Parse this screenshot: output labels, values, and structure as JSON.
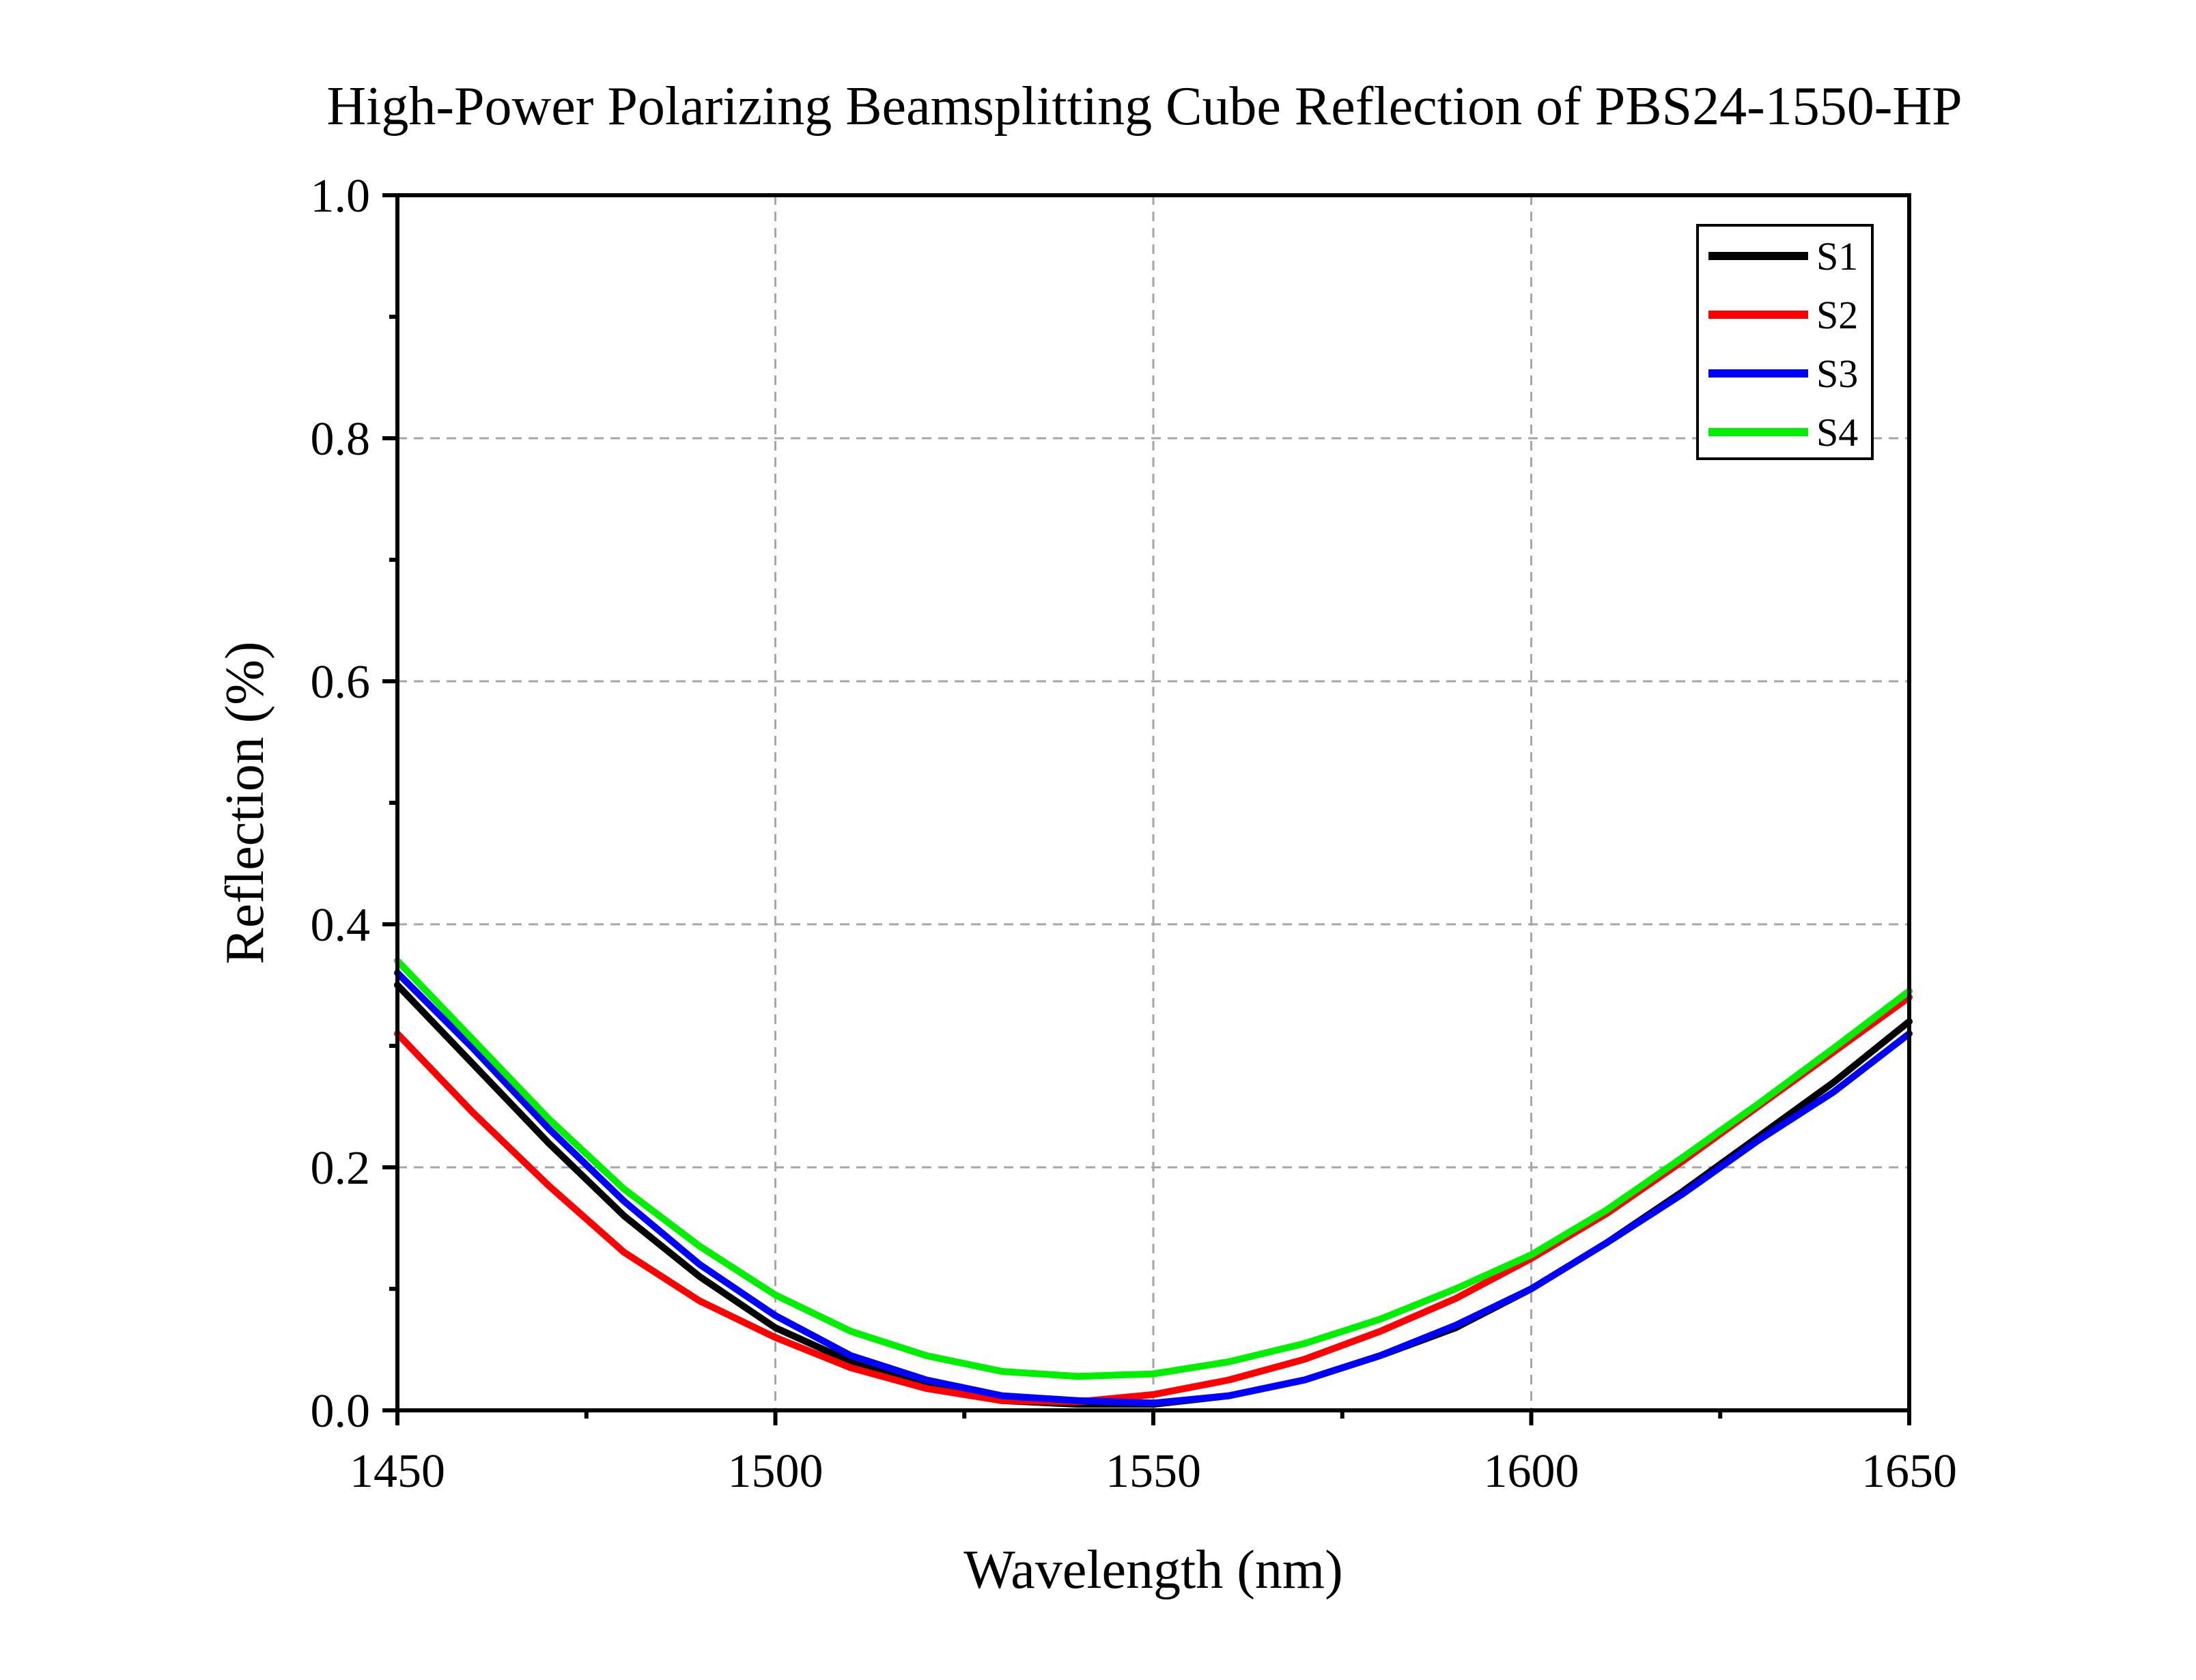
{
  "chart_data": {
    "type": "line",
    "title": "High-Power Polarizing Beamsplitting Cube Reflection of PBS24-1550-HP",
    "xlabel": "Wavelength (nm)",
    "ylabel": "Reflection (%)",
    "xlim": [
      1450,
      1650
    ],
    "ylim": [
      0,
      1.0
    ],
    "xticks": [
      1450,
      1500,
      1550,
      1600,
      1650
    ],
    "xtick_labels": [
      "1450",
      "1500",
      "1550",
      "1600",
      "1650"
    ],
    "yticks": [
      0,
      0.2,
      0.4,
      0.6,
      0.8,
      1.0
    ],
    "ytick_labels": [
      "0.0",
      "0.2",
      "0.4",
      "0.6",
      "0.8",
      "1.0"
    ],
    "grid": true,
    "legend_position": "top-right",
    "x": [
      1450,
      1460,
      1470,
      1480,
      1490,
      1500,
      1510,
      1520,
      1530,
      1540,
      1550,
      1560,
      1570,
      1580,
      1590,
      1600,
      1610,
      1620,
      1630,
      1640,
      1650
    ],
    "series": [
      {
        "name": "S1",
        "color": "#000000",
        "values": [
          0.35,
          0.285,
          0.22,
          0.16,
          0.11,
          0.068,
          0.04,
          0.02,
          0.008,
          0.005,
          0.005,
          0.012,
          0.025,
          0.045,
          0.068,
          0.1,
          0.138,
          0.18,
          0.225,
          0.27,
          0.32
        ]
      },
      {
        "name": "S2",
        "color": "#ff0000",
        "values": [
          0.31,
          0.245,
          0.185,
          0.13,
          0.09,
          0.06,
          0.035,
          0.018,
          0.008,
          0.007,
          0.013,
          0.025,
          0.042,
          0.065,
          0.092,
          0.125,
          0.162,
          0.205,
          0.25,
          0.295,
          0.34
        ]
      },
      {
        "name": "S3",
        "color": "#0000ff",
        "values": [
          0.36,
          0.298,
          0.232,
          0.172,
          0.12,
          0.078,
          0.045,
          0.025,
          0.012,
          0.008,
          0.006,
          0.012,
          0.025,
          0.045,
          0.07,
          0.1,
          0.138,
          0.178,
          0.222,
          0.262,
          0.31
        ]
      },
      {
        "name": "S4",
        "color": "#00ee00",
        "values": [
          0.37,
          0.305,
          0.24,
          0.182,
          0.135,
          0.095,
          0.065,
          0.045,
          0.032,
          0.028,
          0.03,
          0.04,
          0.055,
          0.075,
          0.1,
          0.128,
          0.165,
          0.208,
          0.252,
          0.298,
          0.345
        ]
      }
    ]
  }
}
